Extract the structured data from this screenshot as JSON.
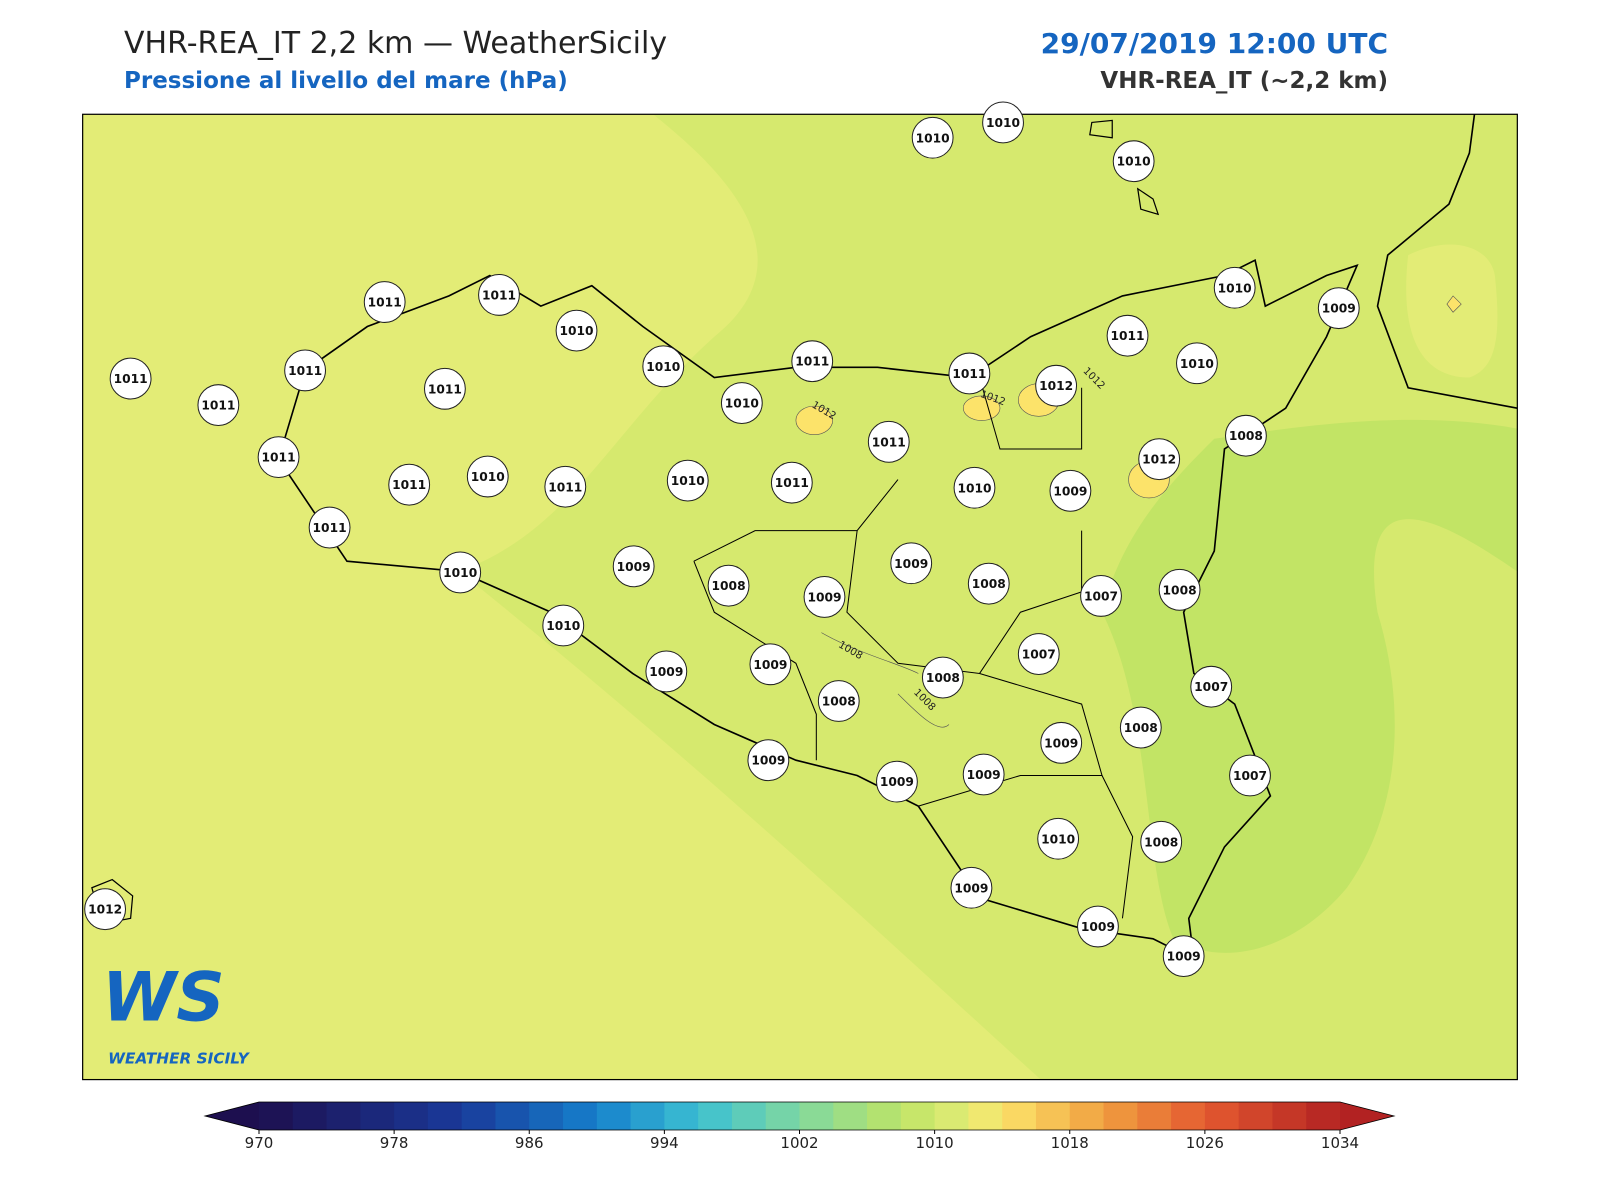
{
  "header": {
    "title": "VHR-REA_IT 2,2 km — WeatherSicily",
    "subtitle": "Pressione al livello del mare (hPa)",
    "date": "29/07/2019 12:00 UTC",
    "model": "VHR-REA_IT (~2,2 km)"
  },
  "stations": [
    "1010",
    "1010",
    "1010",
    "1011",
    "1011",
    "1010",
    "1010",
    "1011",
    "1010",
    "1011",
    "1011",
    "1011",
    "1011",
    "1011",
    "1012",
    "1011",
    "1010",
    "1010",
    "1009",
    "1008",
    "1012",
    "1009",
    "1010",
    "1011",
    "1011",
    "1010",
    "1011",
    "1010",
    "1011",
    "1011",
    "1011",
    "1010",
    "1009",
    "1008",
    "1009",
    "1009",
    "1008",
    "1007",
    "1008",
    "1010",
    "1009",
    "1009",
    "1008",
    "1008",
    "1007",
    "1007",
    "1009",
    "1008",
    "1007",
    "1009",
    "1009",
    "1009",
    "1010",
    "1008",
    "1009",
    "1009",
    "1009",
    "1012"
  ],
  "contour_labels": [
    "1012",
    "1012",
    "1012",
    "1008",
    "1008"
  ],
  "colorbar": {
    "min": 970,
    "max": 1034,
    "step": 2,
    "ticks": [
      970,
      978,
      986,
      994,
      1002,
      1010,
      1018,
      1026,
      1034
    ],
    "anchors": [
      [
        970,
        "#1d0f4f"
      ],
      [
        982,
        "#1a3a9a"
      ],
      [
        990,
        "#1580cc"
      ],
      [
        996,
        "#3cc0d2"
      ],
      [
        1002,
        "#80d8a0"
      ],
      [
        1008,
        "#bde466"
      ],
      [
        1012,
        "#e4ec76"
      ],
      [
        1014,
        "#fce36a"
      ],
      [
        1020,
        "#f0a040"
      ],
      [
        1026,
        "#e45a30"
      ],
      [
        1034,
        "#b22222"
      ]
    ]
  },
  "logo": {
    "mark": "WS",
    "text": "WEATHER SICILY"
  }
}
